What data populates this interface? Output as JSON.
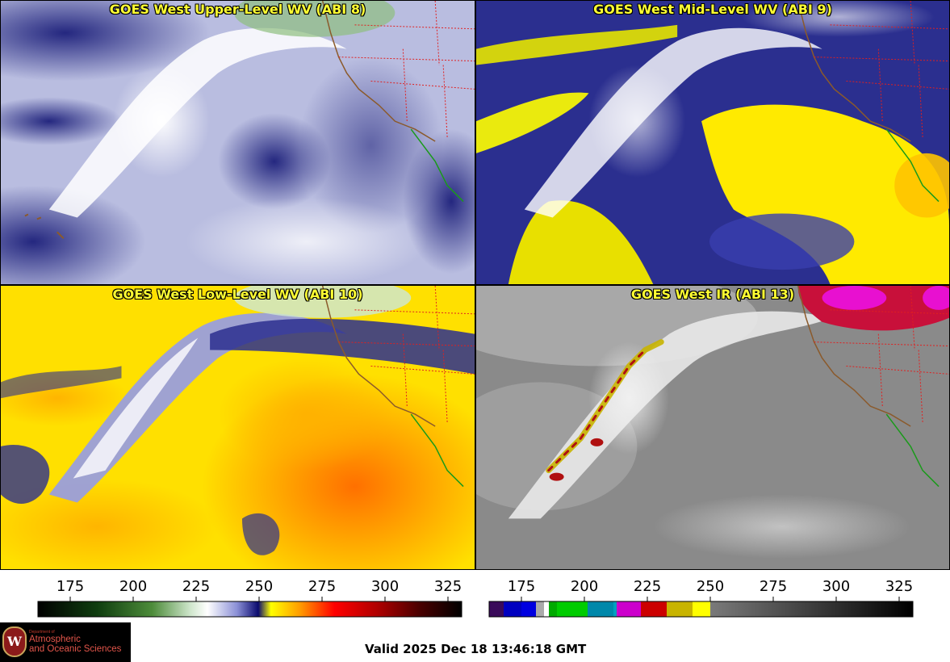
{
  "panels": [
    {
      "title": "GOES West Upper-Level WV (ABI 8)",
      "palette": "wv-upper",
      "base_color": "#b9bde0"
    },
    {
      "title": "GOES West Mid-Level WV (ABI 9)",
      "palette": "wv-mid",
      "base_color": "#2b2f8f"
    },
    {
      "title": "GOES West Low-Level WV (ABI 10)",
      "palette": "wv-low",
      "base_color": "#ffe000"
    },
    {
      "title": "GOES West IR (ABI 13)",
      "palette": "ir",
      "base_color": "#8a8a8a"
    }
  ],
  "colorbars": [
    {
      "name": "water-vapor-colorbar",
      "ticks": [
        "175",
        "200",
        "225",
        "250",
        "275",
        "300",
        "325"
      ],
      "stops": [
        "#000000",
        "#0f3d0f",
        "#4d8c3a",
        "#cfe6cc",
        "#ffffff",
        "#8a8fd6",
        "#0a0a6e",
        "#ffff00",
        "#ff9900",
        "#ff0000",
        "#b00000",
        "#4a0000",
        "#000000"
      ]
    },
    {
      "name": "infrared-colorbar",
      "ticks": [
        "175",
        "200",
        "225",
        "250",
        "275",
        "300",
        "325"
      ]
    }
  ],
  "logo": {
    "dept": "Department of",
    "line1": "Atmospheric",
    "line2": "and Oceanic Sciences",
    "seal": "W"
  },
  "valid_time": "Valid 2025 Dec 18 13:46:18 GMT",
  "colors": {
    "coast": "#8b5a2b",
    "mexico_coast": "#1a9a1a",
    "state_borders": "#e02020",
    "title": "#ffff33"
  }
}
